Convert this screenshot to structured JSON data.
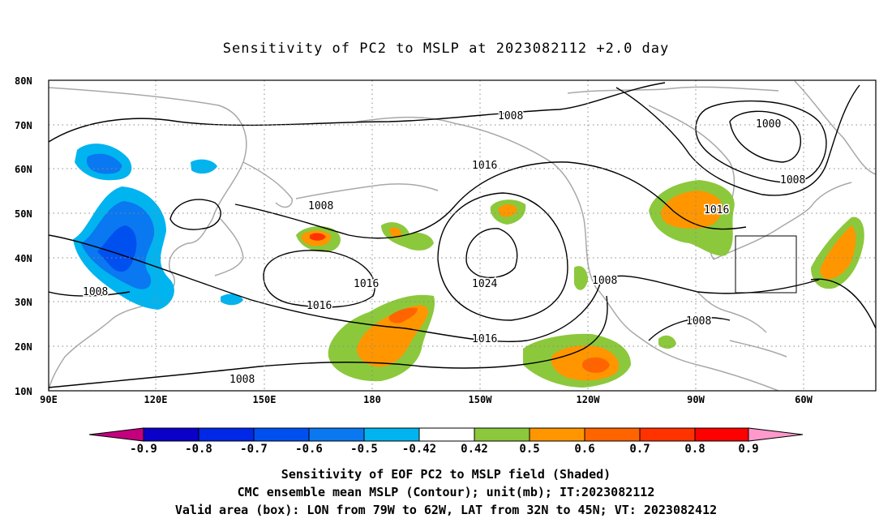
{
  "title": "Sensitivity of PC2 to MSLP at 2023082112 +2.0 day",
  "map": {
    "lat_labels": [
      "80N",
      "70N",
      "60N",
      "50N",
      "40N",
      "30N",
      "20N",
      "10N"
    ],
    "lon_labels": [
      "90E",
      "120E",
      "150E",
      "180",
      "150W",
      "120W",
      "90W",
      "60W"
    ],
    "contour_labels": [
      {
        "text": "1008"
      },
      {
        "text": "1000"
      },
      {
        "text": "1008"
      },
      {
        "text": "1016"
      },
      {
        "text": "1008"
      },
      {
        "text": "1016"
      },
      {
        "text": "1016"
      },
      {
        "text": "1024"
      },
      {
        "text": "1008"
      },
      {
        "text": "1008"
      },
      {
        "text": "1016"
      },
      {
        "text": "1016"
      },
      {
        "text": "1008"
      },
      {
        "text": "1008"
      }
    ],
    "valid_box": {
      "lon_min": "79W",
      "lon_max": "62W",
      "lat_min": "32N",
      "lat_max": "45N"
    }
  },
  "colorbar": {
    "labels": [
      "-0.9",
      "-0.8",
      "-0.7",
      "-0.6",
      "-0.5",
      "-0.42",
      "0.42",
      "0.5",
      "0.6",
      "0.7",
      "0.8",
      "0.9"
    ],
    "colors": [
      "#c4007f",
      "#0a00c8",
      "#0028e6",
      "#0050f0",
      "#0a78f0",
      "#00b4f0",
      "#ffffff",
      "#8cc83c",
      "#ff9600",
      "#ff6400",
      "#ff3200",
      "#ff0000",
      "#ff99cc"
    ]
  },
  "captions": [
    "Sensitivity of EOF PC2 to MSLP field (Shaded)",
    "CMC ensemble mean MSLP (Contour); unit(mb); IT:2023082112",
    "Valid area (box): LON from 79W to 62W, LAT from 32N to 45N; VT: 2023082412"
  ]
}
